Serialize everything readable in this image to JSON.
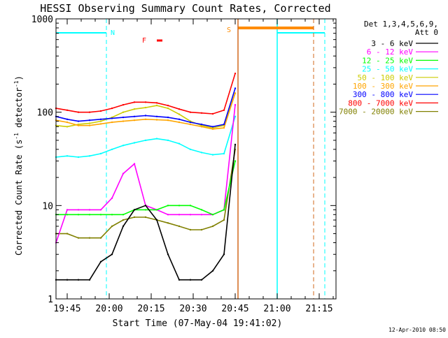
{
  "chart_data": {
    "type": "line",
    "title": "HESSI Observing Summary Count Rates, Corrected",
    "xlabel": "Start Time (07-May-04 19:41:02)",
    "ylabel": "Corrected Count Rate (s",
    "ylabel_sup1": "-1",
    "ylabel_mid": " detector",
    "ylabel_sup2": "-1",
    "ylabel_end": ")",
    "ylim": [
      1,
      1000
    ],
    "yscale": "log",
    "y_ticks": [
      "1",
      "10",
      "100",
      "1000"
    ],
    "x_ticks": [
      "19:45",
      "20:00",
      "20:15",
      "20:30",
      "20:45",
      "21:00",
      "21:15"
    ],
    "grid": false,
    "legend_position": "top-right",
    "legend_title_lines": [
      "Det 1,3,4,5,6,9,",
      "Att 0"
    ],
    "footer_stamp": "12-Apr-2010 08:50",
    "flag_labels": {
      "night": "N",
      "flare": "F",
      "saa": "S"
    },
    "series": [
      {
        "name": "3 - 6 keV",
        "color": "#000000",
        "values": [
          1.6,
          1.6,
          1.6,
          1.6,
          2.5,
          3,
          6,
          9,
          10,
          7,
          3,
          1.6,
          1.6,
          1.6,
          2,
          3,
          45
        ]
      },
      {
        "name": "6 - 12 keV",
        "color": "#ff00ff",
        "values": [
          4,
          9,
          9,
          9,
          9,
          12,
          22,
          28,
          10,
          9,
          8,
          8,
          8,
          8,
          8,
          9,
          120
        ]
      },
      {
        "name": "12 - 25 keV",
        "color": "#00ff00",
        "values": [
          8,
          8,
          8,
          8,
          8,
          8,
          8,
          9,
          9,
          9,
          10,
          10,
          10,
          9,
          8,
          9,
          30
        ]
      },
      {
        "name": "25 - 50 keV",
        "color": "#00ffff",
        "values": [
          33,
          34,
          33,
          34,
          36,
          40,
          44,
          47,
          50,
          52,
          50,
          46,
          40,
          37,
          35,
          36,
          90
        ]
      },
      {
        "name": "50 - 100 keV",
        "color": "#cccc00",
        "values": [
          72,
          70,
          74,
          76,
          80,
          88,
          100,
          108,
          112,
          118,
          110,
          95,
          80,
          72,
          68,
          72,
          160
        ]
      },
      {
        "name": "100 - 300 keV",
        "color": "#ffa500",
        "values": [
          82,
          78,
          72,
          72,
          75,
          78,
          80,
          82,
          84,
          83,
          82,
          78,
          74,
          70,
          66,
          68,
          160
        ]
      },
      {
        "name": "300 - 800 keV",
        "color": "#0000ff",
        "values": [
          90,
          84,
          80,
          82,
          84,
          86,
          88,
          90,
          92,
          90,
          88,
          84,
          78,
          74,
          70,
          74,
          180
        ]
      },
      {
        "name": "800 - 7000 keV",
        "color": "#ff0000",
        "values": [
          110,
          105,
          100,
          100,
          103,
          110,
          120,
          128,
          128,
          126,
          118,
          108,
          100,
          98,
          96,
          105,
          260
        ]
      },
      {
        "name": "7000 - 20000 keV",
        "color": "#808000",
        "values": [
          5,
          5,
          4.5,
          4.5,
          4.5,
          6,
          7,
          7.5,
          7.5,
          7,
          6.5,
          6,
          5.5,
          5.5,
          6,
          7,
          40
        ]
      }
    ]
  }
}
